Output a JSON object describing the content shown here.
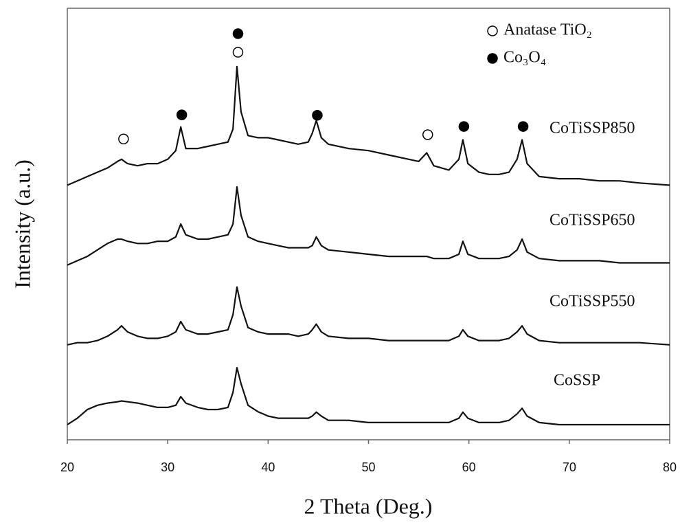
{
  "chart_data": {
    "type": "line",
    "x_label": "2 Theta (Deg.)",
    "y_label": "Intensity (a.u.)",
    "xlim": [
      20,
      80
    ],
    "ylim": [
      0,
      100
    ],
    "xticks": [
      20,
      30,
      40,
      50,
      60,
      70,
      80
    ],
    "x": [
      20,
      21,
      22,
      23,
      24,
      25,
      25.4,
      26,
      27,
      28,
      29,
      30,
      30.8,
      31.3,
      31.8,
      33,
      34,
      35,
      36,
      36.5,
      36.9,
      37.3,
      38,
      39,
      40,
      41,
      42,
      43,
      44,
      44.4,
      44.8,
      45.3,
      46,
      48,
      50,
      52,
      54,
      55,
      55.8,
      56.5,
      58,
      59,
      59.4,
      59.9,
      61,
      62,
      63,
      64,
      64.8,
      65.3,
      65.8,
      67,
      69,
      71,
      73,
      75,
      77,
      80
    ],
    "series": [
      {
        "name": "CoTiSSP850",
        "color": "#111111",
        "values": [
          59,
          60,
          61,
          62,
          63,
          64.5,
          65,
          64,
          63.5,
          64,
          64,
          65,
          67,
          72.5,
          67.5,
          67.5,
          68,
          68.5,
          69,
          72,
          86.5,
          76,
          70.5,
          70,
          70,
          69.5,
          69,
          68.5,
          69,
          71,
          74,
          70,
          68.5,
          67.5,
          67,
          66,
          65,
          64.5,
          66.5,
          63.5,
          62.5,
          65,
          69.5,
          64,
          62,
          61.5,
          61.5,
          62,
          65,
          69.5,
          64,
          61,
          60.5,
          60.5,
          60,
          60,
          59.5,
          59
        ]
      },
      {
        "name": "CoTiSSP650",
        "color": "#111111",
        "values": [
          40.5,
          41.5,
          42.5,
          44,
          45.5,
          46.5,
          46.5,
          46,
          45.5,
          45.5,
          46,
          46,
          47,
          50,
          47.5,
          46.5,
          46.5,
          47,
          47.5,
          50,
          58.6,
          52,
          47,
          46,
          45.5,
          45,
          44.5,
          44.5,
          44.5,
          45,
          47,
          45,
          44,
          43.5,
          43,
          42.5,
          42.5,
          42.5,
          42.5,
          42,
          42,
          43,
          46,
          43,
          42,
          42,
          42,
          42.5,
          44,
          46.5,
          43.5,
          42,
          41.5,
          41.5,
          41.5,
          41,
          41,
          41
        ]
      },
      {
        "name": "CoTiSSP550",
        "color": "#111111",
        "values": [
          22,
          22.5,
          22.5,
          23,
          24,
          25.5,
          26.4,
          25,
          24,
          23.5,
          23.5,
          24,
          25,
          27.4,
          25.5,
          24.5,
          24.5,
          25,
          25.5,
          29,
          35.4,
          31,
          26,
          25,
          24.5,
          24.5,
          24.5,
          24,
          24.5,
          25.5,
          26.8,
          25,
          24,
          23.5,
          23.5,
          23,
          23,
          23,
          23,
          23,
          23,
          24,
          25.5,
          24,
          23,
          23,
          23,
          23.5,
          25,
          26.4,
          24.5,
          23,
          22.5,
          22.5,
          22.5,
          22.5,
          22.5,
          22
        ]
      },
      {
        "name": "CoSSP",
        "color": "#111111",
        "values": [
          3.5,
          5,
          7,
          8,
          8.5,
          8.8,
          9,
          8.8,
          8.5,
          8,
          7.5,
          7.5,
          8,
          10,
          8.5,
          7.5,
          7,
          7,
          7.5,
          11,
          16.7,
          13,
          8,
          6.5,
          5.5,
          5,
          5,
          5,
          5,
          5.5,
          6.4,
          5.5,
          4.5,
          4.5,
          4,
          4,
          4,
          4,
          4,
          4,
          4,
          5,
          6.4,
          5,
          4,
          4,
          4,
          4.5,
          6,
          7.3,
          5.5,
          4,
          3.5,
          3.5,
          3.5,
          3.5,
          3.5,
          3.5
        ]
      }
    ],
    "legend": [
      {
        "label": "Anatase TiO₂",
        "filled": false
      },
      {
        "label": "Co₃O₄",
        "filled": true
      }
    ],
    "markers": [
      {
        "x": 25.6,
        "y": 69.7,
        "filled": false
      },
      {
        "x": 37.0,
        "y": 89.8,
        "filled": false
      },
      {
        "x": 55.9,
        "y": 70.7,
        "filled": false
      },
      {
        "x": 37.0,
        "y": 94.1,
        "filled": true
      },
      {
        "x": 31.4,
        "y": 75.3,
        "filled": true
      },
      {
        "x": 44.9,
        "y": 75.2,
        "filled": true
      },
      {
        "x": 59.5,
        "y": 72.6,
        "filled": true
      },
      {
        "x": 65.4,
        "y": 72.6,
        "filled": true
      }
    ]
  }
}
